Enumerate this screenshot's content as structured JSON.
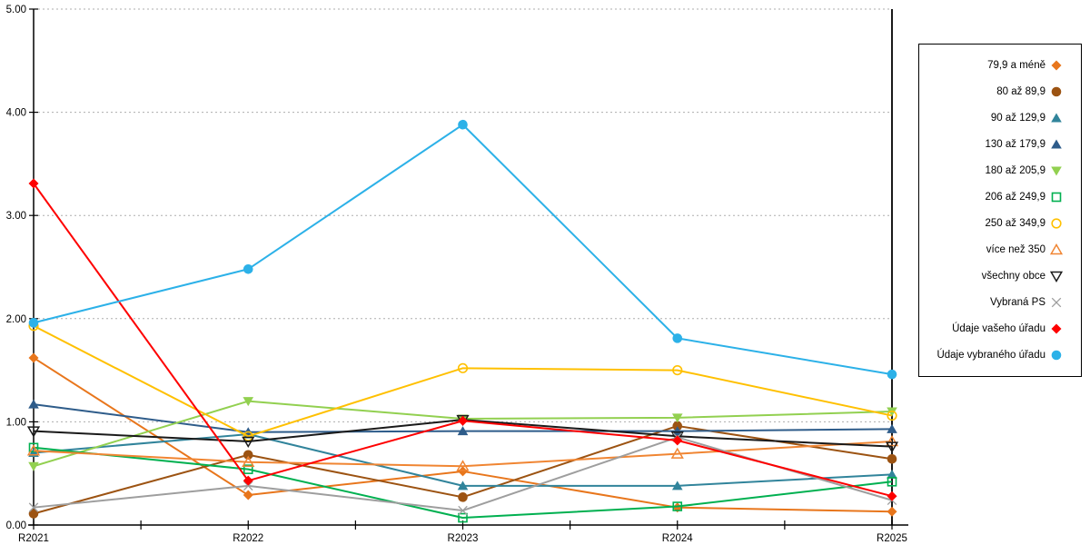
{
  "chart_data": {
    "type": "line",
    "title": "",
    "xlabel": "",
    "ylabel": "",
    "ylim": [
      0,
      5
    ],
    "grid": "horizontal-dotted",
    "legend_position": "right-box",
    "categories": [
      "R2021",
      "R2022",
      "R2023",
      "R2024",
      "R2025"
    ],
    "y_tick_labels": [
      "0.00",
      "1.00",
      "2.00",
      "3.00",
      "4.00",
      "5.00"
    ],
    "series": [
      {
        "name": "79,9 a méně",
        "marker": "diamond",
        "color": "#E8761C",
        "values": [
          1.62,
          0.29,
          0.52,
          0.17,
          0.13
        ]
      },
      {
        "name": "80 až 89,9",
        "marker": "circle",
        "color": "#9C5312",
        "values": [
          0.11,
          0.68,
          0.27,
          0.96,
          0.64
        ]
      },
      {
        "name": "90 až 129,9",
        "marker": "triangle-up",
        "color": "#31849B",
        "values": [
          0.7,
          0.88,
          0.38,
          0.38,
          0.49
        ]
      },
      {
        "name": "130 až 179,9",
        "marker": "triangle-up",
        "color": "#2E5C8A",
        "values": [
          1.17,
          0.9,
          0.91,
          0.91,
          0.93
        ]
      },
      {
        "name": "180 až 205,9",
        "marker": "triangle-down",
        "color": "#92D050",
        "values": [
          0.57,
          1.2,
          1.03,
          1.04,
          1.1
        ]
      },
      {
        "name": "206 až 249,9",
        "marker": "square-open",
        "color": "#00B050",
        "values": [
          0.75,
          0.54,
          0.07,
          0.18,
          0.42
        ]
      },
      {
        "name": "250 až 349,9",
        "marker": "circle-open",
        "color": "#FFC000",
        "values": [
          1.93,
          0.86,
          1.52,
          1.5,
          1.06
        ]
      },
      {
        "name": "více než 350",
        "marker": "triangle-open",
        "color": "#F08532",
        "values": [
          0.72,
          0.61,
          0.57,
          0.69,
          0.81
        ]
      },
      {
        "name": "všechny obce",
        "marker": "triangle-down-open",
        "color": "#1A1A1A",
        "values": [
          0.91,
          0.81,
          1.02,
          0.86,
          0.76
        ]
      },
      {
        "name": "Vybraná PS",
        "marker": "x-cross",
        "color": "#9E9E9E",
        "values": [
          0.17,
          0.38,
          0.14,
          0.85,
          0.24
        ]
      },
      {
        "name": "Údaje vašeho úřadu",
        "marker": "diamond",
        "color": "#FE0000",
        "values": [
          3.31,
          0.43,
          1.01,
          0.82,
          0.28
        ]
      },
      {
        "name": "Údaje vybraného úřadu",
        "marker": "circle",
        "color": "#2CB1E8",
        "values": [
          1.96,
          2.48,
          3.88,
          1.81,
          1.46
        ]
      }
    ]
  },
  "colors": {
    "axis": "#000000",
    "grid": "#ADADAD",
    "background": "#FFFFFF"
  }
}
